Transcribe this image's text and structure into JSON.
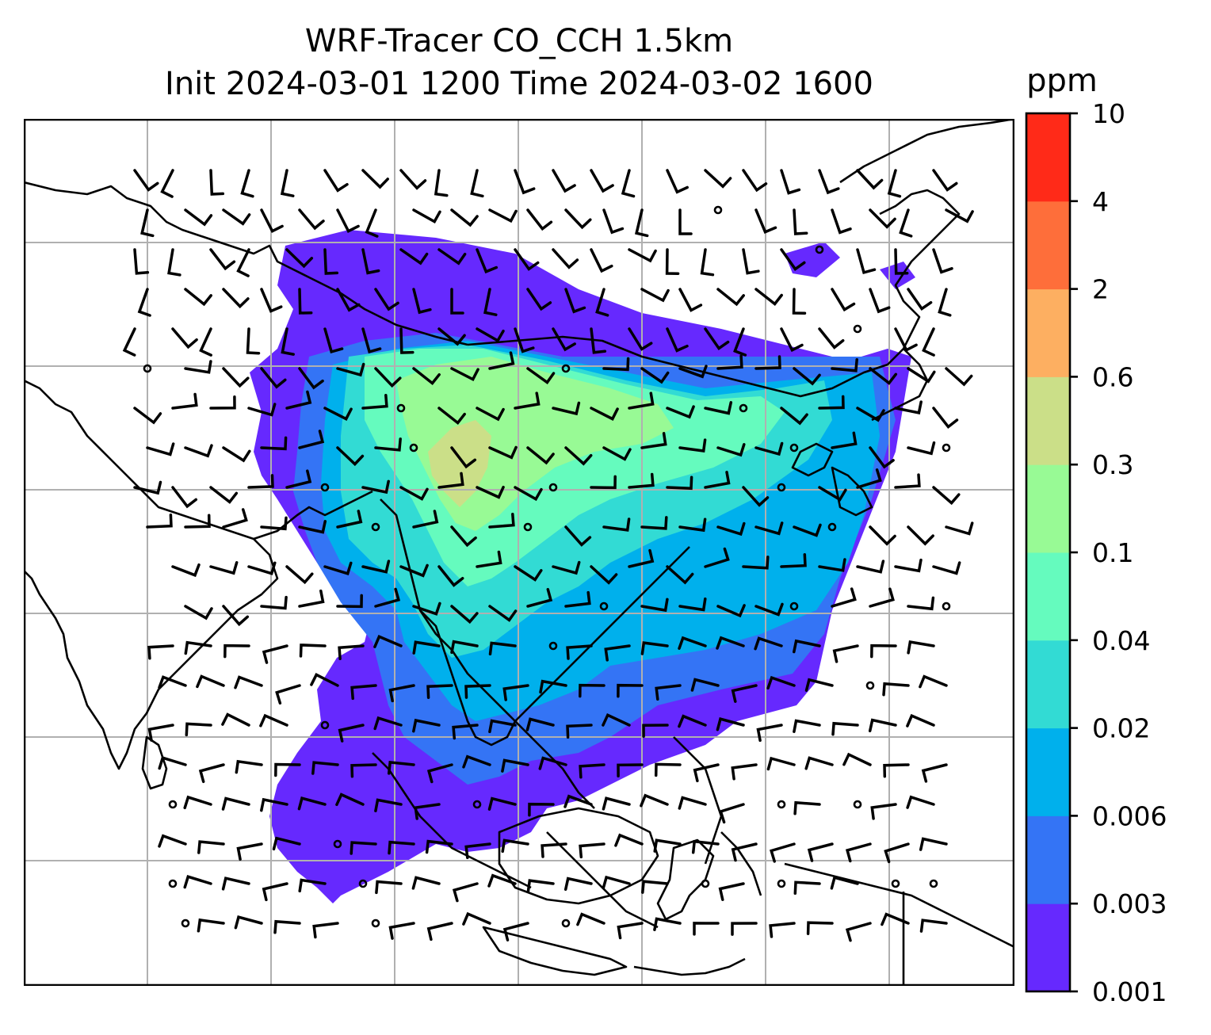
{
  "title": {
    "line1": "WRF-Tracer CO_CCH 1.5km",
    "line2": "Init 2024-03-01 1200 Time 2024-03-02 1600"
  },
  "colorbar": {
    "unit_label": "ppm",
    "levels": [
      "0.001",
      "0.003",
      "0.006",
      "0.02",
      "0.04",
      "0.1",
      "0.3",
      "0.6",
      "2",
      "4",
      "10"
    ],
    "colors": [
      "#6629fe",
      "#3474f5",
      "#00b0ec",
      "#32dbd4",
      "#65fbbe",
      "#98fa95",
      "#cbdf88",
      "#fdaf61",
      "#fe6e3a",
      "#ff2a18"
    ]
  },
  "map": {
    "background": "#ffffff",
    "gridline_color": "#b0b0b0",
    "coastline_color": "#000000",
    "barb_color": "#000000"
  }
}
